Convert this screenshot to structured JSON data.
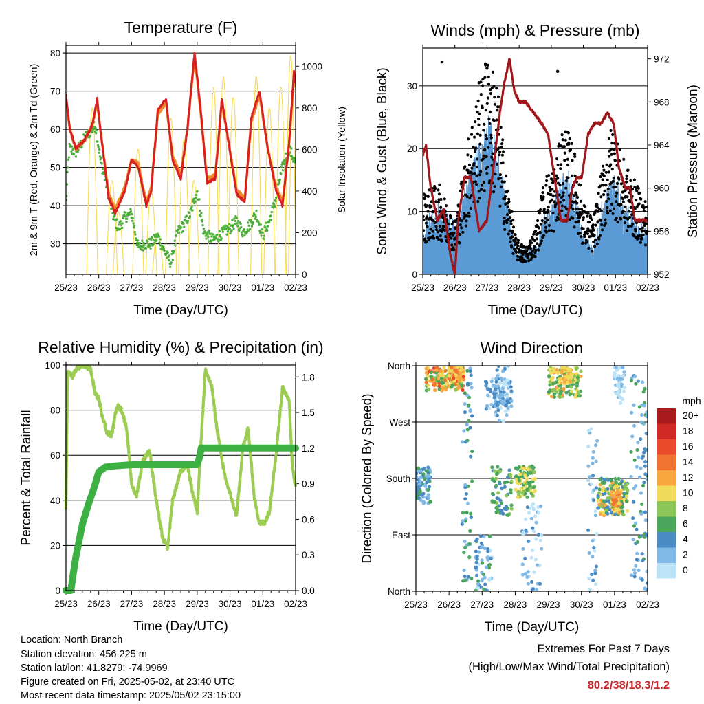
{
  "colors": {
    "temp2m": "#d92020",
    "temp9m": "#f08a2a",
    "dewpoint": "#4caf3c",
    "solar": "#f7dc5a",
    "wind": "#5b9bd5",
    "gust": "#000000",
    "pressure": "#a0181c",
    "rh": "#9ccc52",
    "precip": "#3cb043",
    "extremes": "#c8282c"
  },
  "chart_data": [
    {
      "id": "temperature",
      "type": "line",
      "title": "Temperature (F)",
      "xlabel": "Time (Day/UTC)",
      "ylabel": "2m & 9m T (Red, Orange) & 2m Td (Green)",
      "y2label": "Solar Insolation (Yellow)",
      "xticks": [
        "25/23",
        "26/23",
        "27/23",
        "28/23",
        "29/23",
        "30/23",
        "01/23",
        "02/23"
      ],
      "xlim": [
        0,
        7
      ],
      "ylim": [
        22,
        82
      ],
      "yticks": [
        30,
        40,
        50,
        60,
        70,
        80
      ],
      "y2lim": [
        0,
        1100
      ],
      "y2ticks": [
        0,
        200,
        400,
        600,
        800,
        1000
      ],
      "series": [
        {
          "key": "temp2m",
          "x": [
            0,
            0.12,
            0.3,
            0.55,
            0.8,
            0.95,
            1.05,
            1.3,
            1.5,
            1.8,
            2.0,
            2.2,
            2.45,
            2.6,
            2.8,
            3.05,
            3.25,
            3.5,
            3.7,
            3.92,
            4.1,
            4.3,
            4.55,
            4.75,
            4.95,
            5.2,
            5.45,
            5.65,
            5.9,
            6.15,
            6.4,
            6.6,
            6.8,
            6.95,
            7.0
          ],
          "y": [
            69,
            60,
            55,
            57,
            61,
            68,
            60,
            42,
            38,
            44,
            52,
            50,
            40,
            44,
            65,
            68,
            52,
            47,
            60,
            80,
            66,
            46,
            47,
            68,
            57,
            43,
            41,
            63,
            70,
            55,
            44,
            40,
            56,
            75,
            72
          ]
        },
        {
          "key": "temp9m",
          "x": [
            0,
            0.12,
            0.3,
            0.55,
            0.8,
            0.95,
            1.05,
            1.3,
            1.5,
            1.8,
            2.0,
            2.2,
            2.45,
            2.6,
            2.8,
            3.05,
            3.25,
            3.5,
            3.7,
            3.92,
            4.1,
            4.3,
            4.55,
            4.75,
            4.95,
            5.2,
            5.45,
            5.65,
            5.9,
            6.15,
            6.4,
            6.6,
            6.8,
            6.95,
            7.0
          ],
          "y": [
            68,
            60,
            55,
            57,
            61,
            67,
            60,
            43,
            39,
            45,
            52,
            51,
            41,
            45,
            64,
            67,
            53,
            48,
            60,
            79,
            65,
            47,
            48,
            67,
            57,
            44,
            42,
            62,
            69,
            55,
            45,
            41,
            56,
            74,
            71
          ]
        },
        {
          "key": "dewpoint",
          "x": [
            0,
            0.1,
            0.3,
            0.6,
            0.9,
            1.05,
            1.25,
            1.45,
            1.6,
            1.8,
            2.0,
            2.2,
            2.4,
            2.6,
            2.8,
            3.0,
            3.2,
            3.4,
            3.6,
            3.8,
            4.0,
            4.2,
            4.5,
            4.8,
            5.0,
            5.2,
            5.4,
            5.6,
            5.8,
            6.0,
            6.2,
            6.4,
            6.6,
            6.8,
            7.0
          ],
          "y": [
            41,
            55,
            54,
            58,
            61,
            52,
            45,
            37,
            34,
            37,
            38,
            29,
            30,
            30,
            32,
            28,
            25,
            33,
            35,
            38,
            44,
            33,
            31,
            33,
            34,
            36,
            33,
            35,
            38,
            32,
            36,
            42,
            50,
            55,
            51
          ]
        }
      ],
      "solar": {
        "peaks_x": [
          0.8,
          1.4,
          1.6,
          2.2,
          2.6,
          2.8,
          3.2,
          3.6,
          3.9,
          4.5,
          4.8,
          5.1,
          5.8,
          6.2,
          6.55,
          6.85,
          6.95
        ],
        "peaks_y": [
          800,
          450,
          300,
          600,
          400,
          200,
          750,
          650,
          450,
          900,
          950,
          850,
          950,
          800,
          900,
          1050,
          950
        ]
      }
    },
    {
      "id": "winds",
      "type": "scatter",
      "title": "Winds (mph) & Pressure (mb)",
      "xlabel": "Time (Day/UTC)",
      "ylabel": "Sonic Wind & Gust (Blue, Black)",
      "y2label": "Station Pressure (Maroon)",
      "xticks": [
        "25/23",
        "26/23",
        "27/23",
        "28/23",
        "29/23",
        "30/23",
        "01/23",
        "02/23"
      ],
      "xlim": [
        0,
        7
      ],
      "ylim": [
        0,
        36
      ],
      "yticks": [
        0,
        10,
        20,
        30
      ],
      "y2lim": [
        952,
        973
      ],
      "y2ticks": [
        952,
        956,
        960,
        964,
        968,
        972
      ],
      "wind_profile": {
        "x": [
          0,
          0.5,
          1.0,
          1.5,
          2.0,
          2.3,
          2.6,
          2.9,
          3.2,
          3.5,
          3.8,
          4.1,
          4.4,
          4.7,
          5.0,
          5.3,
          5.6,
          5.9,
          6.2,
          6.5,
          6.8,
          7.0
        ],
        "y": [
          3,
          5,
          3,
          8,
          12,
          10,
          5,
          1,
          1,
          1,
          4,
          5,
          8,
          6,
          2,
          1,
          5,
          8,
          5,
          4,
          3,
          2
        ]
      },
      "gust_profile": {
        "x": [
          0,
          0.5,
          1.0,
          1.5,
          2.0,
          2.3,
          2.6,
          2.9,
          3.2,
          3.5,
          3.8,
          4.1,
          4.4,
          4.7,
          5.0,
          5.3,
          5.6,
          5.9,
          6.2,
          6.5,
          6.8,
          7.0
        ],
        "y": [
          9,
          10,
          6,
          17,
          24,
          22,
          11,
          4,
          3,
          5,
          11,
          12,
          17,
          14,
          8,
          6,
          12,
          17,
          13,
          11,
          9,
          8
        ]
      },
      "pressure": {
        "x": [
          0,
          0.1,
          0.25,
          0.45,
          0.65,
          0.85,
          1.0,
          1.1,
          1.3,
          1.5,
          1.75,
          2.0,
          2.2,
          2.4,
          2.55,
          2.7,
          2.85,
          3.0,
          3.2,
          3.45,
          3.7,
          3.9,
          4.1,
          4.3,
          4.5,
          4.65,
          4.8,
          4.95,
          5.15,
          5.35,
          5.55,
          5.75,
          5.95,
          6.1,
          6.3,
          6.45,
          6.6,
          6.8,
          7.0
        ],
        "y": [
          963,
          964,
          960,
          957,
          958,
          954,
          952,
          957,
          961,
          961,
          956,
          957,
          962,
          967,
          970,
          972,
          969,
          968,
          968,
          967,
          966,
          965,
          961,
          957,
          957,
          960,
          961,
          961,
          965,
          966,
          966,
          967,
          966,
          962,
          960,
          960,
          957,
          957,
          957
        ]
      }
    },
    {
      "id": "humidity",
      "type": "line",
      "title": "Relative Humidity (%) & Precipitation (in)",
      "xlabel": "Time (Day/UTC)",
      "ylabel": "Percent & Total Rainfall",
      "xticks": [
        "25/23",
        "26/23",
        "27/23",
        "28/23",
        "29/23",
        "30/23",
        "01/23",
        "02/23"
      ],
      "xlim": [
        0,
        7
      ],
      "ylim": [
        0,
        100
      ],
      "yticks": [
        0,
        20,
        40,
        60,
        80,
        100
      ],
      "y2lim": [
        0,
        1.9
      ],
      "y2ticks": [
        "0.0",
        "0.3",
        "0.6",
        "0.9",
        "1.2",
        "1.5",
        "1.8"
      ],
      "rh": {
        "x": [
          0,
          0.05,
          0.12,
          0.2,
          0.35,
          0.55,
          0.75,
          0.9,
          1.0,
          1.1,
          1.25,
          1.4,
          1.55,
          1.7,
          1.85,
          2.0,
          2.15,
          2.35,
          2.55,
          2.75,
          2.95,
          3.1,
          3.25,
          3.5,
          3.7,
          3.85,
          4.0,
          4.1,
          4.25,
          4.45,
          4.6,
          4.85,
          5.0,
          5.2,
          5.4,
          5.55,
          5.75,
          5.9,
          6.05,
          6.2,
          6.4,
          6.6,
          6.8,
          6.9,
          7.0
        ],
        "y": [
          36,
          97,
          96,
          95,
          99,
          100,
          98,
          87,
          85,
          78,
          70,
          69,
          82,
          80,
          72,
          47,
          42,
          58,
          62,
          40,
          23,
          19,
          40,
          53,
          56,
          44,
          35,
          62,
          98,
          90,
          72,
          50,
          43,
          33,
          64,
          72,
          40,
          30,
          30,
          35,
          60,
          90,
          85,
          55,
          46
        ]
      },
      "precip": {
        "x": [
          0,
          0.15,
          0.2,
          0.3,
          0.5,
          0.7,
          0.85,
          1.0,
          1.2,
          1.5,
          2.0,
          2.5,
          3.0,
          3.5,
          4.0,
          4.08,
          4.12,
          5.0,
          6.0,
          7.0
        ],
        "y": [
          0,
          0,
          0.1,
          0.28,
          0.56,
          0.74,
          0.86,
          1.0,
          1.04,
          1.05,
          1.06,
          1.06,
          1.06,
          1.06,
          1.06,
          1.13,
          1.2,
          1.2,
          1.2,
          1.2
        ]
      }
    },
    {
      "id": "direction",
      "type": "scatter",
      "title": "Wind Direction",
      "xlabel": "Time (Day/UTC)",
      "ylabel": "Direction (Colored By Speed)",
      "xticks": [
        "25/23",
        "26/23",
        "27/23",
        "28/23",
        "29/23",
        "30/23",
        "01/23",
        "02/23"
      ],
      "xlim": [
        0,
        7
      ],
      "ylim": [
        0,
        360
      ],
      "yticks": [
        {
          "v": 0,
          "label": "North"
        },
        {
          "v": 90,
          "label": "East"
        },
        {
          "v": 180,
          "label": "South"
        },
        {
          "v": 270,
          "label": "West"
        },
        {
          "v": 360,
          "label": "North"
        }
      ],
      "legend_title": "mph",
      "legend_labels": [
        "20+",
        "18",
        "16",
        "14",
        "12",
        "10",
        "8",
        "6",
        "4",
        "2",
        "0"
      ],
      "legend_colors": [
        "#a81a1c",
        "#d12a26",
        "#e84a2a",
        "#f07330",
        "#f7a640",
        "#f0dc5a",
        "#8cc659",
        "#4aa65c",
        "#4a8bc4",
        "#80b8e6",
        "#bde3f7"
      ],
      "clusters": [
        {
          "x": [
            0.0,
            0.45
          ],
          "d": [
            140,
            200
          ],
          "s": [
            2,
            8
          ],
          "n": 80
        },
        {
          "x": [
            0.3,
            1.45
          ],
          "d": [
            320,
            358
          ],
          "s": [
            6,
            17
          ],
          "n": 180
        },
        {
          "x": [
            1.0,
            1.45
          ],
          "d": [
            335,
            358
          ],
          "s": [
            10,
            17
          ],
          "n": 60
        },
        {
          "x": [
            1.4,
            1.7
          ],
          "d": [
            0,
            360
          ],
          "s": [
            2,
            8
          ],
          "n": 60
        },
        {
          "x": [
            1.8,
            2.3
          ],
          "d": [
            0,
            90
          ],
          "s": [
            1,
            7
          ],
          "n": 60
        },
        {
          "x": [
            2.1,
            2.9
          ],
          "d": [
            290,
            340
          ],
          "s": [
            1,
            6
          ],
          "n": 90
        },
        {
          "x": [
            2.4,
            2.8
          ],
          "d": [
            270,
            360
          ],
          "s": [
            1,
            5
          ],
          "n": 40
        },
        {
          "x": [
            2.3,
            2.9
          ],
          "d": [
            120,
            200
          ],
          "s": [
            4,
            10
          ],
          "n": 70
        },
        {
          "x": [
            3.0,
            3.6
          ],
          "d": [
            150,
            200
          ],
          "s": [
            6,
            12
          ],
          "n": 90
        },
        {
          "x": [
            3.2,
            3.8
          ],
          "d": [
            0,
            140
          ],
          "s": [
            0,
            5
          ],
          "n": 50
        },
        {
          "x": [
            4.0,
            5.0
          ],
          "d": [
            310,
            358
          ],
          "s": [
            6,
            13
          ],
          "n": 150
        },
        {
          "x": [
            4.4,
            4.7
          ],
          "d": [
            330,
            358
          ],
          "s": [
            10,
            14
          ],
          "n": 50
        },
        {
          "x": [
            5.2,
            5.5
          ],
          "d": [
            0,
            270
          ],
          "s": [
            0,
            5
          ],
          "n": 40
        },
        {
          "x": [
            5.5,
            6.4
          ],
          "d": [
            120,
            180
          ],
          "s": [
            4,
            14
          ],
          "n": 160
        },
        {
          "x": [
            5.9,
            6.2
          ],
          "d": [
            130,
            160
          ],
          "s": [
            11,
            15
          ],
          "n": 50
        },
        {
          "x": [
            6.0,
            6.3
          ],
          "d": [
            300,
            358
          ],
          "s": [
            0,
            4
          ],
          "n": 40
        },
        {
          "x": [
            6.5,
            7.0
          ],
          "d": [
            0,
            360
          ],
          "s": [
            2,
            8
          ],
          "n": 90
        }
      ]
    }
  ],
  "footer": {
    "location": "Location: North Branch",
    "elevation": "Station elevation: 456.225 m",
    "latlon": "Station lat/lon: 41.8279; -74.9969",
    "created": "Figure created on Fri, 2025-05-02, at 23:40 UTC",
    "timestamp": "Most recent data timestamp: 2025/05/02 23:15:00"
  },
  "extremes": {
    "title": "Extremes For Past 7 Days",
    "subtitle": "(High/Low/Max Wind/Total Precipitation)",
    "values": "80.2/38/18.3/1.2"
  }
}
